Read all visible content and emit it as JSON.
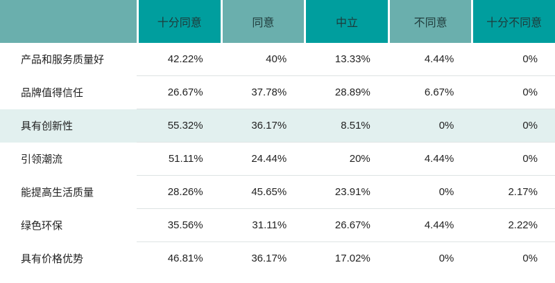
{
  "columns": [
    "",
    "十分同意",
    "同意",
    "中立",
    "不同意",
    "十分不同意"
  ],
  "header_colors": [
    "#6aafad",
    "#009e9e",
    "#6aafad",
    "#009e9e",
    "#6aafad",
    "#009e9e"
  ],
  "highlight_color": "#e2f0ef",
  "rows": [
    {
      "label": "产品和服务质量好",
      "values": [
        "42.22%",
        "40%",
        "13.33%",
        "4.44%",
        "0%"
      ]
    },
    {
      "label": "品牌值得信任",
      "values": [
        "26.67%",
        "37.78%",
        "28.89%",
        "6.67%",
        "0%"
      ]
    },
    {
      "label": "具有创新性",
      "values": [
        "55.32%",
        "36.17%",
        "8.51%",
        "0%",
        "0%"
      ],
      "highlighted": true
    },
    {
      "label": "引领潮流",
      "values": [
        "51.11%",
        "24.44%",
        "20%",
        "4.44%",
        "0%"
      ]
    },
    {
      "label": "能提高生活质量",
      "values": [
        "28.26%",
        "45.65%",
        "23.91%",
        "0%",
        "2.17%"
      ]
    },
    {
      "label": "绿色环保",
      "values": [
        "35.56%",
        "31.11%",
        "26.67%",
        "4.44%",
        "2.22%"
      ]
    },
    {
      "label": "具有价格优势",
      "values": [
        "46.81%",
        "36.17%",
        "17.02%",
        "0%",
        "0%"
      ]
    }
  ]
}
